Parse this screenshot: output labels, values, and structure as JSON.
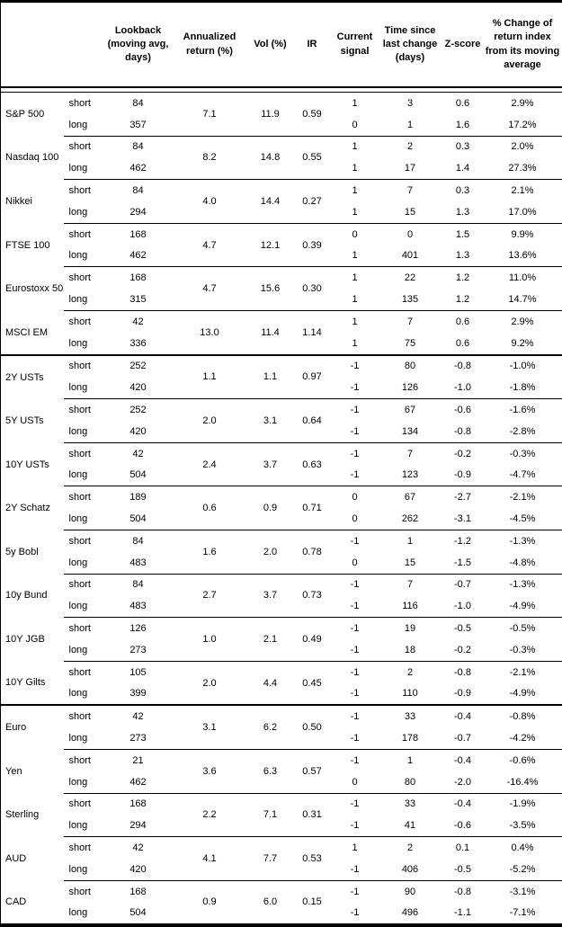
{
  "table": {
    "columns": [
      {
        "key": "asset",
        "label": ""
      },
      {
        "key": "period",
        "label": ""
      },
      {
        "key": "lookback",
        "label": "Lookback (moving avg, days)"
      },
      {
        "key": "ann-return",
        "label": "Annualized return (%)"
      },
      {
        "key": "vol",
        "label": "Vol (%)"
      },
      {
        "key": "ir",
        "label": "IR"
      },
      {
        "key": "signal",
        "label": "Current signal"
      },
      {
        "key": "time-since",
        "label": "Time since last change (days)"
      },
      {
        "key": "zscore",
        "label": "Z-score"
      },
      {
        "key": "pct-change",
        "label": "% Change of return index from its moving average"
      }
    ],
    "groups": [
      {
        "asset": "S&P 500",
        "ann_return": "7.1",
        "vol": "11.9",
        "ir": "0.59",
        "rows": [
          {
            "period": "short",
            "lookback": "84",
            "signal": "1",
            "time": "3",
            "zscore": "0.6",
            "pct_change": "2.9%"
          },
          {
            "period": "long",
            "lookback": "357",
            "signal": "0",
            "time": "1",
            "zscore": "1.6",
            "pct_change": "17.2%"
          }
        ]
      },
      {
        "asset": "Nasdaq 100",
        "ann_return": "8.2",
        "vol": "14.8",
        "ir": "0.55",
        "rows": [
          {
            "period": "short",
            "lookback": "84",
            "signal": "1",
            "time": "2",
            "zscore": "0.3",
            "pct_change": "2.0%"
          },
          {
            "period": "long",
            "lookback": "462",
            "signal": "1",
            "time": "17",
            "zscore": "1.4",
            "pct_change": "27.3%"
          }
        ]
      },
      {
        "asset": "Nikkei",
        "ann_return": "4.0",
        "vol": "14.4",
        "ir": "0.27",
        "rows": [
          {
            "period": "short",
            "lookback": "84",
            "signal": "1",
            "time": "7",
            "zscore": "0.3",
            "pct_change": "2.1%"
          },
          {
            "period": "long",
            "lookback": "294",
            "signal": "1",
            "time": "15",
            "zscore": "1.3",
            "pct_change": "17.0%"
          }
        ]
      },
      {
        "asset": "FTSE 100",
        "ann_return": "4.7",
        "vol": "12.1",
        "ir": "0.39",
        "rows": [
          {
            "period": "short",
            "lookback": "168",
            "signal": "0",
            "time": "0",
            "zscore": "1.5",
            "pct_change": "9.9%"
          },
          {
            "period": "long",
            "lookback": "462",
            "signal": "1",
            "time": "401",
            "zscore": "1.3",
            "pct_change": "13.6%"
          }
        ]
      },
      {
        "asset": "Eurostoxx 50",
        "ann_return": "4.7",
        "vol": "15.6",
        "ir": "0.30",
        "rows": [
          {
            "period": "short",
            "lookback": "168",
            "signal": "1",
            "time": "22",
            "zscore": "1.2",
            "pct_change": "11.0%"
          },
          {
            "period": "long",
            "lookback": "315",
            "signal": "1",
            "time": "135",
            "zscore": "1.2",
            "pct_change": "14.7%"
          }
        ]
      },
      {
        "asset": "MSCI EM",
        "ann_return": "13.0",
        "vol": "11.4",
        "ir": "1.14",
        "section_end": true,
        "rows": [
          {
            "period": "short",
            "lookback": "42",
            "signal": "1",
            "time": "7",
            "zscore": "0.6",
            "pct_change": "2.9%"
          },
          {
            "period": "long",
            "lookback": "336",
            "signal": "1",
            "time": "75",
            "zscore": "0.6",
            "pct_change": "9.2%"
          }
        ]
      },
      {
        "asset": "2Y USTs",
        "ann_return": "1.1",
        "vol": "1.1",
        "ir": "0.97",
        "rows": [
          {
            "period": "short",
            "lookback": "252",
            "signal": "-1",
            "time": "80",
            "zscore": "-0.8",
            "pct_change": "-1.0%"
          },
          {
            "period": "long",
            "lookback": "420",
            "signal": "-1",
            "time": "126",
            "zscore": "-1.0",
            "pct_change": "-1.8%"
          }
        ]
      },
      {
        "asset": "5Y USTs",
        "ann_return": "2.0",
        "vol": "3.1",
        "ir": "0.64",
        "rows": [
          {
            "period": "short",
            "lookback": "252",
            "signal": "-1",
            "time": "67",
            "zscore": "-0.6",
            "pct_change": "-1.6%"
          },
          {
            "period": "long",
            "lookback": "420",
            "signal": "-1",
            "time": "134",
            "zscore": "-0.8",
            "pct_change": "-2.8%"
          }
        ]
      },
      {
        "asset": "10Y USTs",
        "ann_return": "2.4",
        "vol": "3.7",
        "ir": "0.63",
        "rows": [
          {
            "period": "short",
            "lookback": "42",
            "signal": "-1",
            "time": "7",
            "zscore": "-0.2",
            "pct_change": "-0.3%"
          },
          {
            "period": "long",
            "lookback": "504",
            "signal": "-1",
            "time": "123",
            "zscore": "-0.9",
            "pct_change": "-4.7%"
          }
        ]
      },
      {
        "asset": "2Y Schatz",
        "ann_return": "0.6",
        "vol": "0.9",
        "ir": "0.71",
        "rows": [
          {
            "period": "short",
            "lookback": "189",
            "signal": "0",
            "time": "67",
            "zscore": "-2.7",
            "pct_change": "-2.1%"
          },
          {
            "period": "long",
            "lookback": "504",
            "signal": "0",
            "time": "262",
            "zscore": "-3.1",
            "pct_change": "-4.5%"
          }
        ]
      },
      {
        "asset": "5y Bobl",
        "ann_return": "1.6",
        "vol": "2.0",
        "ir": "0.78",
        "rows": [
          {
            "period": "short",
            "lookback": "84",
            "signal": "-1",
            "time": "1",
            "zscore": "-1.2",
            "pct_change": "-1.3%"
          },
          {
            "period": "long",
            "lookback": "483",
            "signal": "0",
            "time": "15",
            "zscore": "-1.5",
            "pct_change": "-4.8%"
          }
        ]
      },
      {
        "asset": "10y Bund",
        "ann_return": "2.7",
        "vol": "3.7",
        "ir": "0.73",
        "rows": [
          {
            "period": "short",
            "lookback": "84",
            "signal": "-1",
            "time": "7",
            "zscore": "-0.7",
            "pct_change": "-1.3%"
          },
          {
            "period": "long",
            "lookback": "483",
            "signal": "-1",
            "time": "116",
            "zscore": "-1.0",
            "pct_change": "-4.9%"
          }
        ]
      },
      {
        "asset": "10Y JGB",
        "ann_return": "1.0",
        "vol": "2.1",
        "ir": "0.49",
        "rows": [
          {
            "period": "short",
            "lookback": "126",
            "signal": "-1",
            "time": "19",
            "zscore": "-0.5",
            "pct_change": "-0.5%"
          },
          {
            "period": "long",
            "lookback": "273",
            "signal": "-1",
            "time": "18",
            "zscore": "-0.2",
            "pct_change": "-0.3%"
          }
        ]
      },
      {
        "asset": "10Y Gilts",
        "ann_return": "2.0",
        "vol": "4.4",
        "ir": "0.45",
        "section_end": true,
        "rows": [
          {
            "period": "short",
            "lookback": "105",
            "signal": "-1",
            "time": "2",
            "zscore": "-0.8",
            "pct_change": "-2.1%"
          },
          {
            "period": "long",
            "lookback": "399",
            "signal": "-1",
            "time": "110",
            "zscore": "-0.9",
            "pct_change": "-4.9%"
          }
        ]
      },
      {
        "asset": "Euro",
        "ann_return": "3.1",
        "vol": "6.2",
        "ir": "0.50",
        "rows": [
          {
            "period": "short",
            "lookback": "42",
            "signal": "-1",
            "time": "33",
            "zscore": "-0.4",
            "pct_change": "-0.8%"
          },
          {
            "period": "long",
            "lookback": "273",
            "signal": "-1",
            "time": "178",
            "zscore": "-0.7",
            "pct_change": "-4.2%"
          }
        ]
      },
      {
        "asset": "Yen",
        "ann_return": "3.6",
        "vol": "6.3",
        "ir": "0.57",
        "rows": [
          {
            "period": "short",
            "lookback": "21",
            "signal": "-1",
            "time": "1",
            "zscore": "-0.4",
            "pct_change": "-0.6%"
          },
          {
            "period": "long",
            "lookback": "462",
            "signal": "0",
            "time": "80",
            "zscore": "-2.0",
            "pct_change": "-16.4%"
          }
        ]
      },
      {
        "asset": "Sterling",
        "ann_return": "2.2",
        "vol": "7.1",
        "ir": "0.31",
        "rows": [
          {
            "period": "short",
            "lookback": "168",
            "signal": "-1",
            "time": "33",
            "zscore": "-0.4",
            "pct_change": "-1.9%"
          },
          {
            "period": "long",
            "lookback": "294",
            "signal": "-1",
            "time": "41",
            "zscore": "-0.6",
            "pct_change": "-3.5%"
          }
        ]
      },
      {
        "asset": "AUD",
        "ann_return": "4.1",
        "vol": "7.7",
        "ir": "0.53",
        "rows": [
          {
            "period": "short",
            "lookback": "42",
            "signal": "1",
            "time": "2",
            "zscore": "0.1",
            "pct_change": "0.4%"
          },
          {
            "period": "long",
            "lookback": "420",
            "signal": "-1",
            "time": "406",
            "zscore": "-0.5",
            "pct_change": "-5.2%"
          }
        ]
      },
      {
        "asset": "CAD",
        "ann_return": "0.9",
        "vol": "6.0",
        "ir": "0.15",
        "rows": [
          {
            "period": "short",
            "lookback": "168",
            "signal": "-1",
            "time": "90",
            "zscore": "-0.8",
            "pct_change": "-3.1%"
          },
          {
            "period": "long",
            "lookback": "504",
            "signal": "-1",
            "time": "496",
            "zscore": "-1.1",
            "pct_change": "-7.1%"
          }
        ]
      }
    ]
  }
}
